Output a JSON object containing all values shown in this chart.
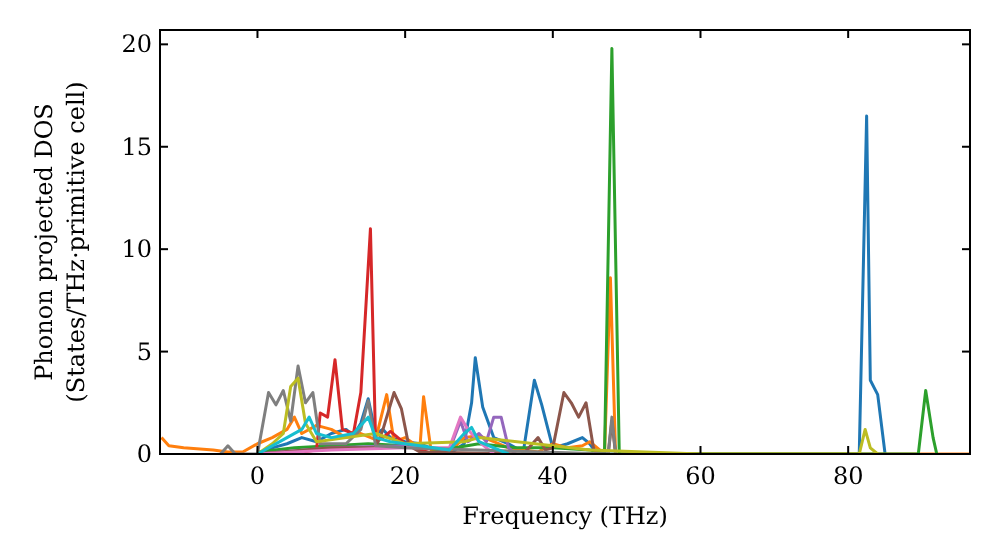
{
  "chart_data": {
    "type": "line",
    "xlabel": "Frequency (THz)",
    "ylabel": "Phonon projected DOS\n(States/THz·primitive cell)",
    "xlim": [
      -13.2,
      96.5
    ],
    "ylim": [
      0,
      20.7
    ],
    "xticks": [
      0,
      20,
      40,
      60,
      80
    ],
    "yticks": [
      0,
      5,
      10,
      15,
      20
    ],
    "grid": false,
    "marker": "none",
    "line_style": "solid",
    "series": [
      {
        "color": "#1f77b4",
        "x": [
          0,
          2,
          4,
          6,
          8,
          10,
          12,
          13,
          14,
          15,
          16,
          17,
          18,
          20,
          22,
          24,
          26,
          28,
          29,
          29.5,
          30.5,
          32,
          34,
          36,
          37.5,
          38.5,
          40,
          42,
          44,
          45,
          46,
          47,
          49,
          60,
          81.5,
          82.5,
          83,
          84,
          85
        ],
        "values": [
          0,
          0.3,
          0.5,
          0.8,
          0.6,
          1,
          1.2,
          0.9,
          1.5,
          2.7,
          1.0,
          1.2,
          0.8,
          0.6,
          0.5,
          0.2,
          0,
          0.5,
          2.5,
          4.7,
          2.3,
          0.8,
          0.5,
          0.1,
          3.6,
          2.4,
          0.3,
          0.5,
          0.8,
          0.5,
          0,
          0,
          0,
          0,
          0,
          16.5,
          3.6,
          2.9,
          0
        ]
      },
      {
        "color": "#ff7f0e",
        "x": [
          -13,
          -12,
          -10,
          -6,
          -4,
          -2,
          0,
          2,
          4,
          5,
          6,
          8,
          10,
          12,
          14,
          16,
          17.5,
          18.5,
          20,
          22,
          22.5,
          23.5,
          26,
          28,
          30,
          32,
          34,
          38,
          40,
          42,
          44,
          45,
          47,
          47.8,
          48.5,
          49,
          96.5
        ],
        "values": [
          0.8,
          0.4,
          0.3,
          0.2,
          0.1,
          0.1,
          0.5,
          0.8,
          1.2,
          1.8,
          1.0,
          1.4,
          1.2,
          0.8,
          1.0,
          0.7,
          2.9,
          0.6,
          0.8,
          0.3,
          2.8,
          0.2,
          0.1,
          0.8,
          0.9,
          0.6,
          0.3,
          0.1,
          0.5,
          0.3,
          0.4,
          0.6,
          0,
          8.6,
          0,
          0,
          0
        ]
      },
      {
        "color": "#2ca02c",
        "x": [
          0,
          5,
          10,
          15,
          20,
          25,
          30,
          35,
          40,
          45,
          47,
          48,
          49,
          60,
          89.5,
          90.5,
          91.5,
          92
        ],
        "values": [
          0.1,
          0.3,
          0.4,
          0.5,
          0.4,
          0.2,
          0.5,
          0.3,
          0.3,
          0.2,
          0,
          19.8,
          0,
          0,
          0,
          3.1,
          0.8,
          0
        ]
      },
      {
        "color": "#d62728",
        "x": [
          0,
          6,
          8,
          8.5,
          9.5,
          10.5,
          11.5,
          13,
          14,
          15.3,
          16,
          17,
          18,
          20,
          22,
          24
        ],
        "values": [
          0,
          0.1,
          0.2,
          2,
          1.8,
          4.6,
          1.2,
          1.0,
          3.0,
          11,
          0.6,
          0.8,
          1.1,
          0.5,
          0.2,
          0
        ]
      },
      {
        "color": "#9467bd",
        "x": [
          0,
          10,
          20,
          26,
          27.5,
          28.5,
          30,
          31,
          32,
          33,
          34,
          35
        ],
        "values": [
          0,
          0.3,
          0.4,
          0.2,
          1.6,
          0.6,
          1.0,
          0.6,
          1.8,
          1.8,
          0.3,
          0
        ]
      },
      {
        "color": "#8c564b",
        "x": [
          0,
          10,
          16,
          17,
          18.5,
          19.5,
          20.5,
          22,
          36,
          38,
          39,
          40,
          41.5,
          42.5,
          43.5,
          44.5,
          45.5,
          46,
          47.5,
          48,
          48.5
        ],
        "values": [
          0,
          0.3,
          0.3,
          1.2,
          3.0,
          2.2,
          0.4,
          0.1,
          0,
          0.8,
          0.2,
          0.3,
          3.0,
          2.5,
          1.8,
          2.5,
          0.3,
          0,
          0,
          1.6,
          0
        ]
      },
      {
        "color": "#e377c2",
        "x": [
          0,
          10,
          20,
          26,
          27.5,
          28.5,
          30,
          32
        ],
        "values": [
          0,
          0.2,
          0.3,
          0.3,
          1.8,
          1.2,
          0.6,
          0
        ]
      },
      {
        "color": "#7f7f7f",
        "x": [
          -5,
          -4,
          -3,
          0,
          1.5,
          2.5,
          3.5,
          4.5,
          5.5,
          6.5,
          7.5,
          8.5,
          10,
          12,
          14,
          15,
          16,
          20,
          47.5,
          48,
          48.5
        ],
        "values": [
          0,
          0.4,
          0,
          0,
          3.0,
          2.4,
          3.1,
          1.6,
          4.3,
          2.5,
          3.0,
          0.5,
          0.5,
          0.5,
          1.2,
          2.6,
          0.4,
          0.3,
          0,
          1.8,
          0
        ]
      },
      {
        "color": "#bcbd22",
        "x": [
          0,
          2,
          3.5,
          4.5,
          5.5,
          6.5,
          8,
          12,
          16,
          20,
          28,
          30,
          40,
          45,
          60,
          81.5,
          82.3,
          83,
          84
        ],
        "values": [
          0,
          0.5,
          1.0,
          3.3,
          3.7,
          1.5,
          0.6,
          0.8,
          1.0,
          0.5,
          0.6,
          0.8,
          0.4,
          0.2,
          0,
          0,
          1.2,
          0.3,
          0
        ]
      },
      {
        "color": "#17becf",
        "x": [
          0,
          4,
          6,
          7,
          8,
          10,
          13,
          15,
          16,
          18,
          22,
          26,
          28,
          29,
          30,
          34
        ],
        "values": [
          0,
          0.8,
          1.2,
          1.8,
          1.0,
          0.8,
          1.0,
          1.8,
          0.8,
          0.6,
          0.4,
          0.2,
          1.0,
          1.3,
          0.6,
          0
        ]
      }
    ]
  }
}
